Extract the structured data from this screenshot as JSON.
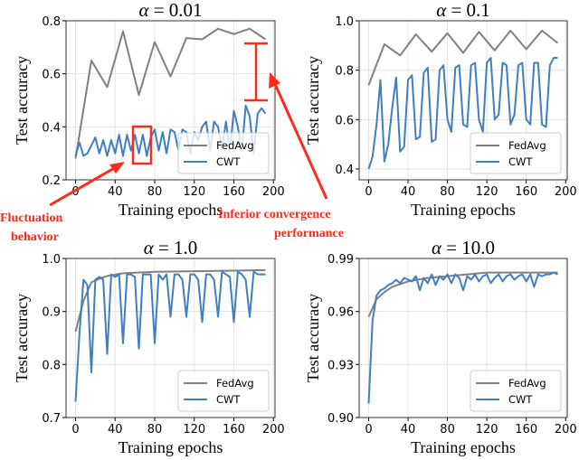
{
  "colors": {
    "fedavg": "#808080",
    "cwt": "#3f7fbf",
    "annotation": "#ff2a1a",
    "grid": "#e3e3e3"
  },
  "annotations": {
    "fluctuation_line1": "Fluctuation",
    "fluctuation_line2": "behavior",
    "inferior_line1": "Inferior convergence",
    "inferior_line2": "performance"
  },
  "chart_data": [
    {
      "type": "line",
      "title_symbol": "α",
      "title_value": "= 0.01",
      "xlabel": "Training epochs",
      "ylabel": "Test accuracy",
      "xlim": [
        -9.6,
        201.6
      ],
      "ylim": [
        0.2,
        0.8
      ],
      "xticks": [
        0,
        40,
        80,
        120,
        160,
        200
      ],
      "yticks": [
        0.2,
        0.4,
        0.6,
        0.8
      ],
      "ytick_labels": [
        "0.2",
        "0.4",
        "0.6",
        "0.8"
      ],
      "grid": true,
      "legend_position": "lower-right",
      "series": [
        {
          "name": "FedAvg",
          "x": [
            0,
            16,
            32,
            48,
            64,
            80,
            96,
            112,
            128,
            144,
            160,
            176,
            192
          ],
          "values": [
            0.28,
            0.65,
            0.55,
            0.76,
            0.52,
            0.72,
            0.59,
            0.735,
            0.73,
            0.77,
            0.75,
            0.77,
            0.73
          ]
        },
        {
          "name": "CWT",
          "step": 4,
          "values": [
            0.29,
            0.34,
            0.29,
            0.3,
            0.33,
            0.36,
            0.3,
            0.35,
            0.29,
            0.35,
            0.3,
            0.37,
            0.29,
            0.37,
            0.31,
            0.37,
            0.3,
            0.37,
            0.29,
            0.36,
            0.39,
            0.31,
            0.38,
            0.3,
            0.39,
            0.38,
            0.31,
            0.39,
            0.38,
            0.3,
            0.38,
            0.35,
            0.4,
            0.42,
            0.31,
            0.42,
            0.4,
            0.32,
            0.42,
            0.31,
            0.46,
            0.4,
            0.31,
            0.48,
            0.44,
            0.3,
            0.45,
            0.47,
            0.45
          ]
        }
      ]
    },
    {
      "type": "line",
      "title_symbol": "α",
      "title_value": "= 0.1",
      "xlabel": "Training epochs",
      "ylabel": "Test accuracy",
      "xlim": [
        -9.6,
        201.6
      ],
      "ylim": [
        0.356,
        1.0
      ],
      "xticks": [
        0,
        40,
        80,
        120,
        160,
        200
      ],
      "yticks": [
        0.4,
        0.6,
        0.8,
        1.0
      ],
      "ytick_labels": [
        "0.4",
        "0.6",
        "0.8",
        "1.0"
      ],
      "grid": true,
      "legend_position": "lower-right",
      "series": [
        {
          "name": "FedAvg",
          "x": [
            0,
            16,
            32,
            48,
            64,
            80,
            96,
            112,
            128,
            144,
            160,
            176,
            192
          ],
          "values": [
            0.74,
            0.905,
            0.86,
            0.945,
            0.875,
            0.95,
            0.87,
            0.955,
            0.88,
            0.96,
            0.885,
            0.96,
            0.91
          ]
        },
        {
          "name": "CWT",
          "step": 4,
          "values": [
            0.4,
            0.45,
            0.58,
            0.76,
            0.43,
            0.5,
            0.65,
            0.77,
            0.47,
            0.49,
            0.76,
            0.78,
            0.52,
            0.53,
            0.79,
            0.81,
            0.51,
            0.52,
            0.8,
            0.82,
            0.6,
            0.55,
            0.81,
            0.82,
            0.58,
            0.57,
            0.82,
            0.83,
            0.6,
            0.55,
            0.83,
            0.85,
            0.6,
            0.62,
            0.83,
            0.82,
            0.58,
            0.62,
            0.82,
            0.83,
            0.6,
            0.58,
            0.83,
            0.83,
            0.58,
            0.57,
            0.82,
            0.85,
            0.85
          ]
        }
      ]
    },
    {
      "type": "line",
      "title_symbol": "α",
      "title_value": "= 1.0",
      "xlabel": "Training epochs",
      "ylabel": "Test accuracy",
      "xlim": [
        -9.6,
        201.6
      ],
      "ylim": [
        0.7,
        1.0
      ],
      "xticks": [
        0,
        40,
        80,
        120,
        160,
        200
      ],
      "yticks": [
        0.7,
        0.8,
        0.9,
        1.0
      ],
      "ytick_labels": [
        "0.7",
        "0.8",
        "0.9",
        "1.0"
      ],
      "grid": true,
      "legend_position": "lower-right",
      "series": [
        {
          "name": "FedAvg",
          "x": [
            0,
            8,
            16,
            24,
            32,
            48,
            80,
            120,
            160,
            192
          ],
          "values": [
            0.862,
            0.92,
            0.955,
            0.962,
            0.967,
            0.972,
            0.975,
            0.976,
            0.977,
            0.978
          ]
        },
        {
          "name": "CWT",
          "step": 4,
          "values": [
            0.73,
            0.86,
            0.96,
            0.95,
            0.785,
            0.96,
            0.965,
            0.96,
            0.82,
            0.97,
            0.965,
            0.97,
            0.84,
            0.97,
            0.97,
            0.965,
            0.83,
            0.97,
            0.97,
            0.97,
            0.84,
            0.97,
            0.96,
            0.97,
            0.89,
            0.97,
            0.97,
            0.96,
            0.89,
            0.97,
            0.97,
            0.96,
            0.88,
            0.97,
            0.97,
            0.96,
            0.89,
            0.975,
            0.97,
            0.965,
            0.88,
            0.975,
            0.97,
            0.96,
            0.89,
            0.975,
            0.97,
            0.97,
            0.97
          ]
        }
      ]
    },
    {
      "type": "line",
      "title_symbol": "α",
      "title_value": "= 10.0",
      "xlabel": "Training epochs",
      "ylabel": "Test accuracy",
      "xlim": [
        -9.6,
        201.6
      ],
      "ylim": [
        0.9,
        0.99
      ],
      "xticks": [
        0,
        40,
        80,
        120,
        160,
        200
      ],
      "yticks": [
        0.9,
        0.93,
        0.96,
        0.99
      ],
      "ytick_labels": [
        "0.90",
        "0.93",
        "0.96",
        "0.99"
      ],
      "grid": true,
      "legend_position": "lower-right",
      "series": [
        {
          "name": "FedAvg",
          "x": [
            0,
            8,
            16,
            24,
            40,
            60,
            80,
            120,
            192
          ],
          "values": [
            0.957,
            0.967,
            0.971,
            0.974,
            0.977,
            0.979,
            0.98,
            0.982,
            0.982
          ]
        },
        {
          "name": "CWT",
          "step": 4,
          "values": [
            0.908,
            0.955,
            0.969,
            0.972,
            0.973,
            0.975,
            0.976,
            0.978,
            0.976,
            0.979,
            0.978,
            0.977,
            0.98,
            0.972,
            0.979,
            0.976,
            0.981,
            0.975,
            0.98,
            0.978,
            0.981,
            0.976,
            0.981,
            0.979,
            0.972,
            0.98,
            0.978,
            0.981,
            0.977,
            0.98,
            0.981,
            0.976,
            0.979,
            0.981,
            0.977,
            0.98,
            0.981,
            0.978,
            0.98,
            0.981,
            0.977,
            0.981,
            0.974,
            0.981,
            0.98,
            0.981,
            0.981,
            0.982,
            0.981
          ]
        }
      ]
    }
  ]
}
